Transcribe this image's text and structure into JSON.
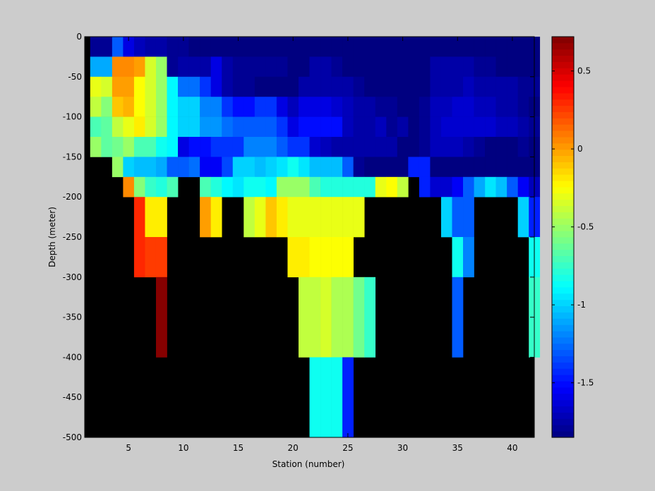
{
  "chart_data": {
    "type": "heatmap",
    "title": "",
    "xlabel": "Station (number)",
    "ylabel": "Depth (meter)",
    "xlim": [
      1,
      42
    ],
    "ylim": [
      -500,
      0
    ],
    "x_ticks": [
      5,
      10,
      15,
      20,
      25,
      30,
      35,
      40
    ],
    "y_ticks": [
      0,
      -50,
      -100,
      -150,
      -200,
      -250,
      -300,
      -350,
      -400,
      -450,
      -500
    ],
    "colormap": "jet",
    "colorbar": {
      "clim": [
        -1.85,
        0.72
      ],
      "ticks": [
        0.5,
        0,
        -0.5,
        -1,
        -1.5
      ],
      "tick_labels": [
        "0.5",
        "0",
        "-0.5",
        "-1",
        "-1.5"
      ]
    },
    "missing_color": "#000000",
    "stations": [
      2,
      3,
      4,
      5,
      6,
      7,
      8,
      9,
      10,
      11,
      12,
      13,
      14,
      15,
      16,
      17,
      18,
      19,
      20,
      21,
      22,
      23,
      24,
      25,
      26,
      27,
      28,
      29,
      30,
      31,
      32,
      33,
      34,
      35,
      36,
      37,
      38,
      39,
      40,
      41,
      42
    ],
    "depth_bins": [
      {
        "top": 0,
        "bottom": -25
      },
      {
        "top": -25,
        "bottom": -50
      },
      {
        "top": -50,
        "bottom": -75
      },
      {
        "top": -75,
        "bottom": -100
      },
      {
        "top": -100,
        "bottom": -125
      },
      {
        "top": -125,
        "bottom": -150
      },
      {
        "top": -150,
        "bottom": -175
      },
      {
        "top": -175,
        "bottom": -200
      },
      {
        "top": -200,
        "bottom": -250
      },
      {
        "top": -250,
        "bottom": -300
      },
      {
        "top": -300,
        "bottom": -400
      },
      {
        "top": -400,
        "bottom": -500
      }
    ],
    "values": [
      [
        -1.8,
        -1.8,
        -1.3,
        -1.6,
        -1.7,
        -1.75,
        -1.75,
        -1.8,
        -1.8,
        -1.85,
        -1.85,
        -1.85,
        -1.85,
        -1.85,
        -1.85,
        -1.85,
        -1.85,
        -1.85,
        -1.85,
        -1.85,
        -1.85,
        -1.85,
        -1.85,
        -1.85,
        -1.85,
        -1.85,
        -1.85,
        -1.85,
        -1.85,
        -1.85,
        -1.85,
        -1.85,
        -1.85,
        -1.85,
        -1.85,
        -1.85,
        -1.85,
        -1.85,
        -1.85,
        -1.85,
        -1.85
      ],
      [
        -1.1,
        -1.1,
        0.05,
        0.05,
        0.0,
        -0.35,
        -0.5,
        -1.8,
        -1.75,
        -1.75,
        -1.75,
        -1.6,
        -1.75,
        -1.8,
        -1.8,
        -1.8,
        -1.8,
        -1.8,
        -1.85,
        -1.85,
        -1.75,
        -1.75,
        -1.8,
        -1.85,
        -1.85,
        -1.85,
        -1.85,
        -1.85,
        -1.85,
        -1.85,
        -1.85,
        -1.75,
        -1.75,
        -1.75,
        -1.75,
        -1.8,
        -1.8,
        -1.85,
        -1.85,
        -1.85,
        -1.85
      ],
      [
        -0.3,
        -0.35,
        0.0,
        0.0,
        -0.25,
        -0.35,
        -0.5,
        -0.9,
        -1.25,
        -1.25,
        -1.4,
        -1.6,
        -1.75,
        -1.8,
        -1.8,
        -1.85,
        -1.85,
        -1.85,
        -1.85,
        -1.75,
        -1.75,
        -1.75,
        -1.75,
        -1.75,
        -1.8,
        -1.85,
        -1.85,
        -1.85,
        -1.85,
        -1.85,
        -1.85,
        -1.75,
        -1.75,
        -1.75,
        -1.7,
        -1.75,
        -1.75,
        -1.75,
        -1.75,
        -1.8,
        -1.8
      ],
      [
        -0.4,
        -0.55,
        -0.1,
        -0.05,
        -0.25,
        -0.35,
        -0.5,
        -0.9,
        -1.0,
        -1.0,
        -1.2,
        -1.2,
        -1.4,
        -1.5,
        -1.5,
        -1.4,
        -1.4,
        -1.6,
        -1.7,
        -1.6,
        -1.6,
        -1.6,
        -1.65,
        -1.7,
        -1.75,
        -1.75,
        -1.8,
        -1.8,
        -1.85,
        -1.85,
        -1.8,
        -1.7,
        -1.7,
        -1.65,
        -1.65,
        -1.7,
        -1.7,
        -1.75,
        -1.75,
        -1.8,
        -1.85
      ],
      [
        -0.7,
        -0.65,
        -0.4,
        -0.3,
        -0.2,
        -0.35,
        -0.5,
        -0.9,
        -1.0,
        -1.0,
        -1.15,
        -1.15,
        -1.25,
        -1.3,
        -1.3,
        -1.3,
        -1.3,
        -1.4,
        -1.6,
        -1.5,
        -1.5,
        -1.5,
        -1.5,
        -1.7,
        -1.75,
        -1.75,
        -1.7,
        -1.8,
        -1.75,
        -1.85,
        -1.8,
        -1.7,
        -1.65,
        -1.65,
        -1.65,
        -1.65,
        -1.65,
        -1.7,
        -1.7,
        -1.75,
        -1.8
      ],
      [
        -0.5,
        -0.65,
        -0.6,
        -0.5,
        -0.7,
        -0.7,
        -0.85,
        -0.9,
        -1.6,
        -1.5,
        -1.5,
        -1.4,
        -1.4,
        -1.4,
        -1.2,
        -1.2,
        -1.2,
        -1.3,
        -1.4,
        -1.4,
        -1.65,
        -1.7,
        -1.75,
        -1.75,
        -1.75,
        -1.75,
        -1.75,
        -1.75,
        -1.85,
        -1.85,
        -1.8,
        -1.7,
        -1.7,
        -1.7,
        -1.75,
        -1.8,
        -1.85,
        -1.85,
        -1.85,
        -1.8,
        -1.85
      ],
      [
        null,
        null,
        -0.5,
        -1.0,
        -1.05,
        -1.05,
        -1.1,
        -1.3,
        -1.3,
        -1.25,
        -1.55,
        -1.55,
        -1.35,
        -1.0,
        -1.0,
        -1.05,
        -1.0,
        -0.95,
        -0.85,
        -0.95,
        -1.05,
        -1.05,
        -1.05,
        -1.3,
        -1.8,
        -1.85,
        -1.85,
        -1.85,
        -1.85,
        -1.45,
        -1.45,
        -1.85,
        -1.85,
        -1.85,
        -1.85,
        -1.85,
        -1.85,
        -1.85,
        -1.85,
        -1.85,
        -1.85
      ],
      [
        null,
        null,
        null,
        0.05,
        -0.55,
        -0.75,
        -0.8,
        -0.7,
        null,
        null,
        -0.7,
        -0.8,
        -0.9,
        -0.95,
        -0.85,
        -0.85,
        -0.9,
        -0.5,
        -0.5,
        -0.5,
        -0.7,
        -0.8,
        -0.8,
        -0.8,
        -0.8,
        -0.8,
        -0.3,
        -0.25,
        -0.4,
        null,
        -1.45,
        -1.65,
        -1.65,
        -1.55,
        -1.3,
        -1.1,
        -0.95,
        -1.05,
        -1.3,
        -1.55,
        -1.7
      ],
      [
        null,
        null,
        null,
        null,
        0.3,
        -0.2,
        -0.2,
        null,
        null,
        null,
        0.0,
        -0.2,
        null,
        null,
        -0.4,
        -0.3,
        -0.1,
        -0.2,
        -0.3,
        -0.3,
        -0.3,
        -0.3,
        -0.3,
        -0.3,
        -0.3,
        null,
        null,
        null,
        null,
        null,
        null,
        null,
        -1.0,
        -1.3,
        -1.3,
        null,
        null,
        null,
        null,
        -1.0,
        -1.45
      ],
      [
        null,
        null,
        null,
        null,
        0.3,
        0.25,
        0.25,
        null,
        null,
        null,
        null,
        null,
        null,
        null,
        null,
        null,
        null,
        null,
        -0.2,
        -0.2,
        -0.25,
        -0.25,
        -0.25,
        -0.25,
        null,
        null,
        null,
        null,
        null,
        null,
        null,
        null,
        null,
        -0.85,
        -1.2,
        null,
        null,
        null,
        null,
        null,
        -0.85
      ],
      [
        null,
        null,
        null,
        null,
        null,
        null,
        0.7,
        null,
        null,
        null,
        null,
        null,
        null,
        null,
        null,
        null,
        null,
        null,
        null,
        -0.4,
        -0.4,
        -0.35,
        -0.45,
        -0.45,
        -0.6,
        -0.75,
        null,
        null,
        null,
        null,
        null,
        null,
        null,
        -1.3,
        null,
        null,
        null,
        null,
        null,
        null,
        -0.75
      ],
      [
        null,
        null,
        null,
        null,
        null,
        null,
        null,
        null,
        null,
        null,
        null,
        null,
        null,
        null,
        null,
        null,
        null,
        null,
        null,
        null,
        -0.85,
        -0.85,
        -0.85,
        -1.45,
        null,
        null,
        null,
        null,
        null,
        null,
        null,
        null,
        null,
        null,
        null,
        null,
        null,
        null,
        null,
        null,
        null
      ]
    ]
  }
}
